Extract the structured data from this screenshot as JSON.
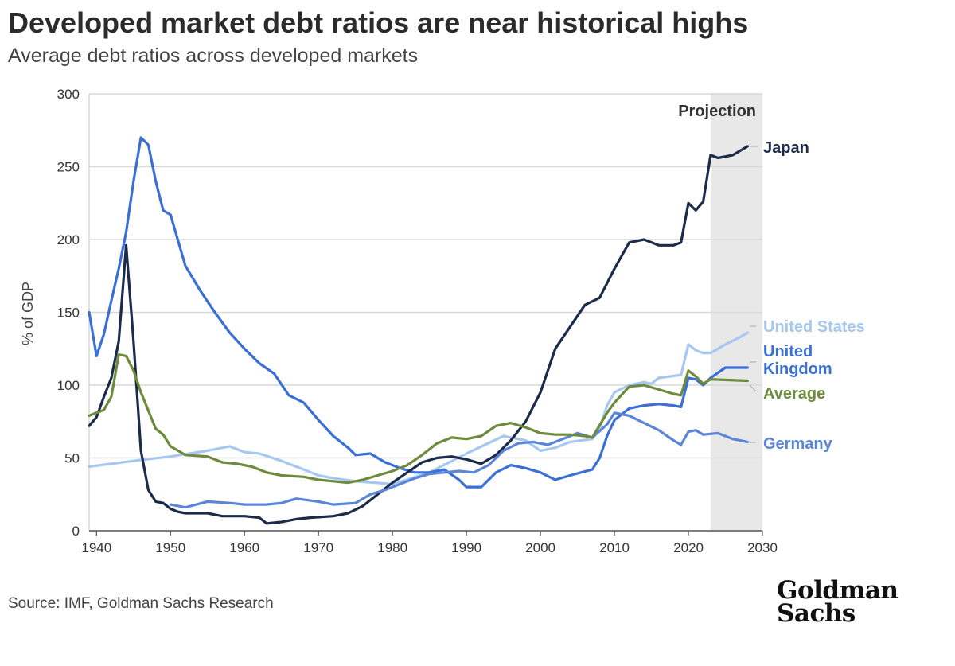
{
  "title": "Developed market debt ratios are near historical highs",
  "subtitle": "Average debt ratios across developed markets",
  "source": "Source: IMF, Goldman Sachs Research",
  "logo": [
    "Goldman",
    "Sachs"
  ],
  "chart_data": {
    "type": "line",
    "ylabel": "% of GDP",
    "xlim": [
      1939,
      2030
    ],
    "ylim": [
      0,
      300
    ],
    "x_ticks": [
      1940,
      1950,
      1960,
      1970,
      1980,
      1990,
      2000,
      2010,
      2020,
      2030
    ],
    "y_ticks": [
      0,
      50,
      100,
      150,
      200,
      250,
      300
    ],
    "grid": "horizontal",
    "legend": "line-end labels on right",
    "projection": {
      "label": "Projection",
      "from": 2023,
      "to": 2030,
      "color": "#e8e8e8"
    },
    "series": [
      {
        "name": "United States",
        "label_lines": [
          "United States"
        ],
        "color": "#a6c8f0",
        "points": [
          [
            1939,
            44
          ],
          [
            1945,
            48
          ],
          [
            1950,
            51
          ],
          [
            1955,
            55
          ],
          [
            1958,
            58
          ],
          [
            1960,
            54
          ],
          [
            1962,
            53
          ],
          [
            1965,
            48
          ],
          [
            1968,
            42
          ],
          [
            1970,
            38
          ],
          [
            1972,
            36
          ],
          [
            1975,
            34
          ],
          [
            1980,
            32
          ],
          [
            1985,
            40
          ],
          [
            1990,
            53
          ],
          [
            1995,
            65
          ],
          [
            1998,
            62
          ],
          [
            2000,
            55
          ],
          [
            2002,
            57
          ],
          [
            2004,
            61
          ],
          [
            2007,
            63
          ],
          [
            2008,
            70
          ],
          [
            2009,
            86
          ],
          [
            2010,
            95
          ],
          [
            2012,
            100
          ],
          [
            2014,
            102
          ],
          [
            2015,
            101
          ],
          [
            2016,
            105
          ],
          [
            2019,
            107
          ],
          [
            2020,
            128
          ],
          [
            2021,
            124
          ],
          [
            2022,
            122
          ],
          [
            2023,
            122
          ],
          [
            2025,
            128
          ],
          [
            2027,
            133
          ],
          [
            2028,
            136
          ]
        ]
      },
      {
        "name": "United Kingdom",
        "label_lines": [
          "United",
          "Kingdom"
        ],
        "color": "#3a6fd6",
        "points": [
          [
            1939,
            150
          ],
          [
            1940,
            120
          ],
          [
            1941,
            135
          ],
          [
            1942,
            158
          ],
          [
            1943,
            180
          ],
          [
            1944,
            205
          ],
          [
            1945,
            240
          ],
          [
            1946,
            270
          ],
          [
            1947,
            265
          ],
          [
            1948,
            240
          ],
          [
            1949,
            220
          ],
          [
            1950,
            217
          ],
          [
            1952,
            182
          ],
          [
            1954,
            165
          ],
          [
            1956,
            150
          ],
          [
            1958,
            136
          ],
          [
            1960,
            125
          ],
          [
            1962,
            115
          ],
          [
            1964,
            108
          ],
          [
            1966,
            93
          ],
          [
            1968,
            88
          ],
          [
            1970,
            76
          ],
          [
            1972,
            65
          ],
          [
            1974,
            57
          ],
          [
            1975,
            52
          ],
          [
            1977,
            53
          ],
          [
            1979,
            47
          ],
          [
            1981,
            43
          ],
          [
            1983,
            40
          ],
          [
            1985,
            40
          ],
          [
            1987,
            42
          ],
          [
            1989,
            35
          ],
          [
            1990,
            30
          ],
          [
            1992,
            30
          ],
          [
            1994,
            40
          ],
          [
            1996,
            45
          ],
          [
            1998,
            43
          ],
          [
            2000,
            40
          ],
          [
            2002,
            35
          ],
          [
            2004,
            38
          ],
          [
            2007,
            42
          ],
          [
            2008,
            50
          ],
          [
            2009,
            65
          ],
          [
            2010,
            76
          ],
          [
            2012,
            84
          ],
          [
            2014,
            86
          ],
          [
            2016,
            87
          ],
          [
            2018,
            86
          ],
          [
            2019,
            85
          ],
          [
            2020,
            105
          ],
          [
            2021,
            104
          ],
          [
            2022,
            100
          ],
          [
            2023,
            105
          ],
          [
            2025,
            112
          ],
          [
            2028,
            112
          ]
        ]
      },
      {
        "name": "Japan",
        "label_lines": [
          "Japan"
        ],
        "color": "#1d2b4a",
        "points": [
          [
            1939,
            72
          ],
          [
            1940,
            78
          ],
          [
            1941,
            92
          ],
          [
            1942,
            105
          ],
          [
            1943,
            130
          ],
          [
            1944,
            196
          ],
          [
            1945,
            130
          ],
          [
            1946,
            55
          ],
          [
            1947,
            28
          ],
          [
            1948,
            20
          ],
          [
            1949,
            19
          ],
          [
            1950,
            15
          ],
          [
            1951,
            13
          ],
          [
            1952,
            12
          ],
          [
            1955,
            12
          ],
          [
            1957,
            10
          ],
          [
            1960,
            10
          ],
          [
            1962,
            9
          ],
          [
            1963,
            5
          ],
          [
            1965,
            6
          ],
          [
            1967,
            8
          ],
          [
            1969,
            9
          ],
          [
            1972,
            10
          ],
          [
            1974,
            12
          ],
          [
            1976,
            17
          ],
          [
            1978,
            25
          ],
          [
            1980,
            33
          ],
          [
            1982,
            40
          ],
          [
            1984,
            47
          ],
          [
            1986,
            50
          ],
          [
            1988,
            51
          ],
          [
            1990,
            49
          ],
          [
            1992,
            46
          ],
          [
            1994,
            52
          ],
          [
            1996,
            62
          ],
          [
            1998,
            75
          ],
          [
            2000,
            95
          ],
          [
            2002,
            125
          ],
          [
            2004,
            140
          ],
          [
            2006,
            155
          ],
          [
            2008,
            160
          ],
          [
            2010,
            180
          ],
          [
            2012,
            198
          ],
          [
            2014,
            200
          ],
          [
            2016,
            196
          ],
          [
            2018,
            196
          ],
          [
            2019,
            198
          ],
          [
            2020,
            225
          ],
          [
            2021,
            220
          ],
          [
            2022,
            226
          ],
          [
            2023,
            258
          ],
          [
            2024,
            256
          ],
          [
            2026,
            258
          ],
          [
            2028,
            264
          ]
        ]
      },
      {
        "name": "Germany",
        "label_lines": [
          "Germany"
        ],
        "color": "#5b86d8",
        "points": [
          [
            1950,
            18
          ],
          [
            1952,
            16
          ],
          [
            1955,
            20
          ],
          [
            1958,
            19
          ],
          [
            1960,
            18
          ],
          [
            1963,
            18
          ],
          [
            1965,
            19
          ],
          [
            1967,
            22
          ],
          [
            1970,
            20
          ],
          [
            1972,
            18
          ],
          [
            1975,
            19
          ],
          [
            1977,
            25
          ],
          [
            1979,
            28
          ],
          [
            1981,
            32
          ],
          [
            1983,
            36
          ],
          [
            1985,
            39
          ],
          [
            1987,
            40
          ],
          [
            1989,
            41
          ],
          [
            1991,
            40
          ],
          [
            1993,
            45
          ],
          [
            1995,
            55
          ],
          [
            1997,
            60
          ],
          [
            1999,
            61
          ],
          [
            2001,
            59
          ],
          [
            2003,
            63
          ],
          [
            2005,
            67
          ],
          [
            2007,
            64
          ],
          [
            2009,
            73
          ],
          [
            2010,
            81
          ],
          [
            2012,
            79
          ],
          [
            2014,
            74
          ],
          [
            2016,
            69
          ],
          [
            2018,
            62
          ],
          [
            2019,
            59
          ],
          [
            2020,
            68
          ],
          [
            2021,
            69
          ],
          [
            2022,
            66
          ],
          [
            2024,
            67
          ],
          [
            2026,
            63
          ],
          [
            2028,
            61
          ]
        ]
      },
      {
        "name": "Average",
        "label_lines": [
          "Average"
        ],
        "color": "#6e8a3c",
        "points": [
          [
            1939,
            79
          ],
          [
            1941,
            83
          ],
          [
            1942,
            92
          ],
          [
            1943,
            121
          ],
          [
            1944,
            120
          ],
          [
            1945,
            110
          ],
          [
            1946,
            95
          ],
          [
            1948,
            70
          ],
          [
            1949,
            66
          ],
          [
            1950,
            58
          ],
          [
            1952,
            52
          ],
          [
            1955,
            51
          ],
          [
            1957,
            47
          ],
          [
            1959,
            46
          ],
          [
            1961,
            44
          ],
          [
            1963,
            40
          ],
          [
            1965,
            38
          ],
          [
            1968,
            37
          ],
          [
            1970,
            35
          ],
          [
            1972,
            34
          ],
          [
            1974,
            33
          ],
          [
            1976,
            35
          ],
          [
            1978,
            38
          ],
          [
            1980,
            41
          ],
          [
            1982,
            45
          ],
          [
            1984,
            52
          ],
          [
            1986,
            60
          ],
          [
            1988,
            64
          ],
          [
            1990,
            63
          ],
          [
            1992,
            65
          ],
          [
            1994,
            72
          ],
          [
            1996,
            74
          ],
          [
            1998,
            71
          ],
          [
            2000,
            67
          ],
          [
            2002,
            66
          ],
          [
            2004,
            66
          ],
          [
            2006,
            65
          ],
          [
            2007,
            64
          ],
          [
            2009,
            81
          ],
          [
            2010,
            88
          ],
          [
            2012,
            99
          ],
          [
            2014,
            100
          ],
          [
            2016,
            97
          ],
          [
            2018,
            94
          ],
          [
            2019,
            93
          ],
          [
            2020,
            110
          ],
          [
            2021,
            106
          ],
          [
            2022,
            101
          ],
          [
            2023,
            104
          ],
          [
            2028,
            103
          ]
        ]
      }
    ]
  }
}
